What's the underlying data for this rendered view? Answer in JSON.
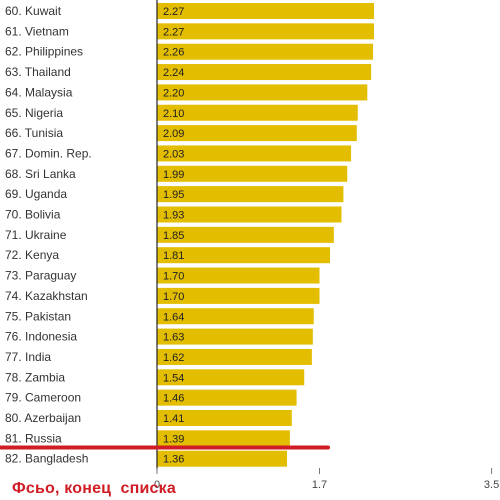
{
  "colors": {
    "bar": "#e3bd00",
    "axis": "#222222",
    "marker_line": "#d01c24",
    "caption": "#d01c24"
  },
  "caption_text": "Фсьо, конец  списка",
  "chart_data": {
    "type": "bar",
    "orientation": "horizontal",
    "categories": [
      "60. Kuwait",
      "61. Vietnam",
      "62. Philippines",
      "63. Thailand",
      "64. Malaysia",
      "65. Nigeria",
      "66. Tunisia",
      "67. Domin. Rep.",
      "68. Sri Lanka",
      "69. Uganda",
      "70. Bolivia",
      "71. Ukraine",
      "72. Kenya",
      "73. Paraguay",
      "74. Kazakhstan",
      "75. Pakistan",
      "76. Indonesia",
      "77. India",
      "78. Zambia",
      "79. Cameroon",
      "80. Azerbaijan",
      "81. Russia",
      "82. Bangladesh"
    ],
    "values": [
      2.27,
      2.27,
      2.26,
      2.24,
      2.2,
      2.1,
      2.09,
      2.03,
      1.99,
      1.95,
      1.93,
      1.85,
      1.81,
      1.7,
      1.7,
      1.64,
      1.63,
      1.62,
      1.54,
      1.46,
      1.41,
      1.39,
      1.36
    ],
    "value_labels": [
      "2.27",
      "2.27",
      "2.26",
      "2.24",
      "2.20",
      "2.10",
      "2.09",
      "2.03",
      "1.99",
      "1.95",
      "1.93",
      "1.85",
      "1.81",
      "1.70",
      "1.70",
      "1.64",
      "1.63",
      "1.62",
      "1.54",
      "1.46",
      "1.41",
      "1.39",
      "1.36"
    ],
    "xticks": [
      0,
      1.7,
      3.5
    ],
    "xtick_labels": [
      "0",
      "1.7",
      "3.5"
    ],
    "xlim": [
      0,
      3.5
    ],
    "title": "",
    "xlabel": "",
    "ylabel": "",
    "grid": false,
    "highlight_after": "81. Russia"
  }
}
